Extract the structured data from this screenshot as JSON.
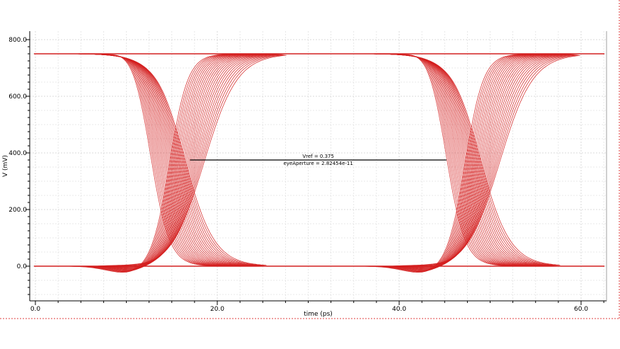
{
  "chart_data": {
    "type": "line",
    "title": "",
    "xlabel": "time (ps)",
    "ylabel": "V (mV)",
    "xlim": [
      0,
      62.5
    ],
    "ylim": [
      -110,
      840
    ],
    "x_ticks": [
      0,
      20,
      40,
      60
    ],
    "x_tick_labels": [
      "0.0",
      "20.0",
      "40.0",
      "60.0"
    ],
    "y_ticks": [
      0,
      200,
      400,
      600,
      800
    ],
    "y_tick_labels": [
      "0.0",
      "200.0",
      "400.0",
      "600.0",
      "800.0"
    ],
    "grid": true,
    "legend": "none",
    "trace_color": "#d42020",
    "levels_mV": {
      "high": 750,
      "low": 0
    },
    "eye": {
      "period_ps": 32.5,
      "crossing_ps": [
        15.5,
        48.0
      ],
      "falling_crossing_range_ps": [
        12.7,
        16.4
      ],
      "rising_crossing_range_ps": [
        14.8,
        18.6
      ],
      "overshoot_peak_mV": 778,
      "undershoot_peak_mV": -27,
      "trace_count": 24
    },
    "annotation": {
      "vref_label": "Vref = 0.375",
      "aperture_label": "eyeAperture = 2.82454e-11",
      "vref_mV": 375,
      "x_start_ps": 17.0,
      "x_end_ps": 45.2
    }
  }
}
